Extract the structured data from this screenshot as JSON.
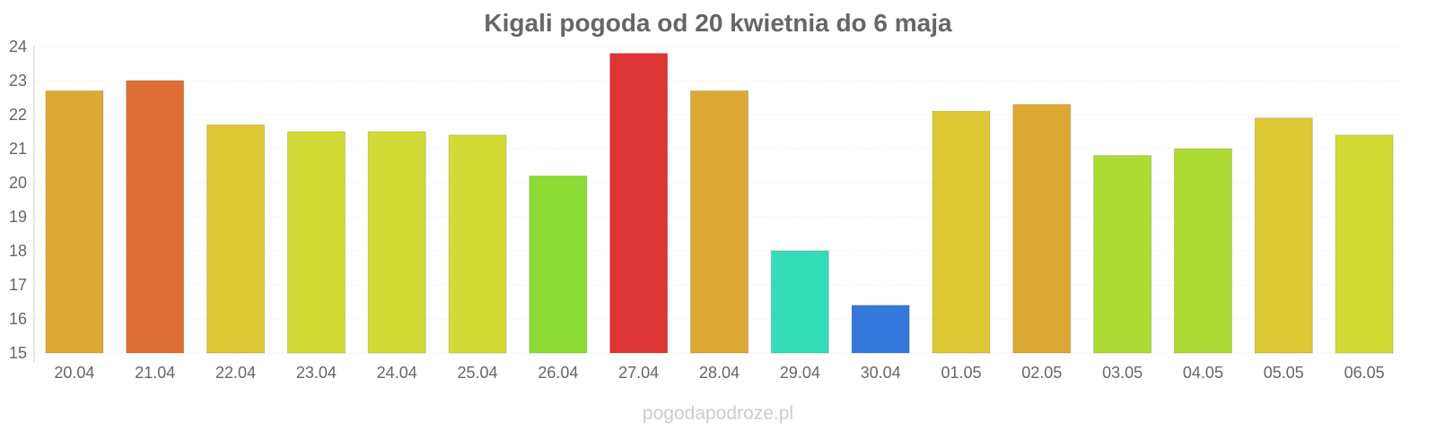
{
  "chart_data": {
    "type": "bar",
    "title": "Kigali pogoda od 20 kwietnia do 6 maja",
    "xlabel": "",
    "ylabel": "",
    "ylim": [
      15,
      24
    ],
    "yticks": [
      15,
      16,
      17,
      18,
      19,
      20,
      21,
      22,
      23,
      24
    ],
    "grid": true,
    "categories": [
      "20.04",
      "21.04",
      "22.04",
      "23.04",
      "24.04",
      "25.04",
      "26.04",
      "27.04",
      "28.04",
      "29.04",
      "30.04",
      "01.05",
      "02.05",
      "03.05",
      "04.05",
      "05.05",
      "06.05"
    ],
    "values": [
      22.7,
      23.0,
      21.7,
      21.5,
      21.5,
      21.4,
      20.2,
      23.8,
      22.7,
      18.0,
      16.4,
      22.1,
      22.3,
      20.8,
      21.0,
      21.9,
      21.4
    ],
    "colors": [
      "#dea835",
      "#df7035",
      "#ddc935",
      "#d0dc35",
      "#d0dc35",
      "#d0dc35",
      "#8cdc35",
      "#dd3535",
      "#dea835",
      "#35dcb8",
      "#3578dc",
      "#ddc935",
      "#dea835",
      "#aedc35",
      "#aedc35",
      "#ddc935",
      "#d0dc35"
    ]
  },
  "watermark": "pogodapodroze.pl"
}
